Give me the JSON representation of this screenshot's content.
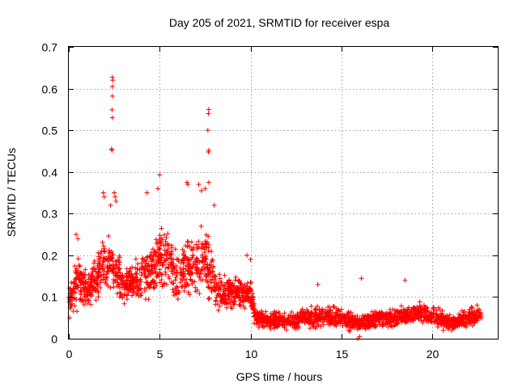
{
  "chart_data": {
    "type": "scatter",
    "title": "Day 205 of 2021, SRMTID for receiver espa",
    "xlabel": "GPS time / hours",
    "ylabel": "SRMTID / TECUs",
    "xlim": [
      0,
      23.6
    ],
    "ylim": [
      0,
      0.7
    ],
    "xticks": [
      0,
      5,
      10,
      15,
      20
    ],
    "yticks": [
      0,
      0.1,
      0.2,
      0.3,
      0.4,
      0.5,
      0.6,
      0.7
    ],
    "ytick_labels": [
      "0",
      "0.1",
      "0.2",
      "0.3",
      "0.4",
      "0.5",
      "0.6",
      "0.7"
    ],
    "grid": true,
    "marker": "+",
    "series": [
      {
        "name": "espa",
        "color": "#ff0000",
        "envelope": [
          {
            "t": 0.0,
            "lo": 0.04,
            "hi": 0.14
          },
          {
            "t": 0.5,
            "lo": 0.06,
            "hi": 0.22
          },
          {
            "t": 1.0,
            "lo": 0.06,
            "hi": 0.16
          },
          {
            "t": 1.5,
            "lo": 0.08,
            "hi": 0.22
          },
          {
            "t": 2.0,
            "lo": 0.1,
            "hi": 0.27
          },
          {
            "t": 2.5,
            "lo": 0.08,
            "hi": 0.27
          },
          {
            "t": 3.0,
            "lo": 0.07,
            "hi": 0.18
          },
          {
            "t": 3.5,
            "lo": 0.08,
            "hi": 0.2
          },
          {
            "t": 4.0,
            "lo": 0.08,
            "hi": 0.22
          },
          {
            "t": 4.5,
            "lo": 0.07,
            "hi": 0.24
          },
          {
            "t": 5.0,
            "lo": 0.1,
            "hi": 0.3
          },
          {
            "t": 5.5,
            "lo": 0.1,
            "hi": 0.27
          },
          {
            "t": 6.0,
            "lo": 0.06,
            "hi": 0.22
          },
          {
            "t": 6.5,
            "lo": 0.08,
            "hi": 0.28
          },
          {
            "t": 7.0,
            "lo": 0.08,
            "hi": 0.26
          },
          {
            "t": 7.5,
            "lo": 0.09,
            "hi": 0.3
          },
          {
            "t": 8.0,
            "lo": 0.06,
            "hi": 0.2
          },
          {
            "t": 8.5,
            "lo": 0.05,
            "hi": 0.16
          },
          {
            "t": 9.0,
            "lo": 0.06,
            "hi": 0.17
          },
          {
            "t": 9.5,
            "lo": 0.06,
            "hi": 0.16
          },
          {
            "t": 10.0,
            "lo": 0.06,
            "hi": 0.16
          },
          {
            "t": 10.3,
            "lo": 0.02,
            "hi": 0.08
          },
          {
            "t": 11.0,
            "lo": 0.02,
            "hi": 0.07
          },
          {
            "t": 12.0,
            "lo": 0.01,
            "hi": 0.07
          },
          {
            "t": 13.0,
            "lo": 0.02,
            "hi": 0.08
          },
          {
            "t": 14.0,
            "lo": 0.02,
            "hi": 0.09
          },
          {
            "t": 15.0,
            "lo": 0.02,
            "hi": 0.08
          },
          {
            "t": 16.0,
            "lo": 0.01,
            "hi": 0.06
          },
          {
            "t": 17.0,
            "lo": 0.02,
            "hi": 0.08
          },
          {
            "t": 18.0,
            "lo": 0.02,
            "hi": 0.08
          },
          {
            "t": 19.0,
            "lo": 0.03,
            "hi": 0.09
          },
          {
            "t": 20.0,
            "lo": 0.03,
            "hi": 0.09
          },
          {
            "t": 21.0,
            "lo": 0.01,
            "hi": 0.06
          },
          {
            "t": 22.0,
            "lo": 0.02,
            "hi": 0.08
          },
          {
            "t": 22.7,
            "lo": 0.03,
            "hi": 0.09
          }
        ],
        "outliers": [
          [
            2.4,
            0.627
          ],
          [
            2.42,
            0.62
          ],
          [
            2.4,
            0.605
          ],
          [
            2.4,
            0.582
          ],
          [
            2.38,
            0.549
          ],
          [
            2.4,
            0.53
          ],
          [
            2.35,
            0.455
          ],
          [
            2.38,
            0.452
          ],
          [
            7.7,
            0.55
          ],
          [
            7.68,
            0.54
          ],
          [
            7.65,
            0.5
          ],
          [
            7.7,
            0.452
          ],
          [
            7.68,
            0.448
          ],
          [
            5.0,
            0.393
          ],
          [
            4.9,
            0.36
          ],
          [
            6.5,
            0.375
          ],
          [
            6.55,
            0.37
          ],
          [
            7.15,
            0.37
          ],
          [
            7.7,
            0.375
          ],
          [
            7.3,
            0.355
          ],
          [
            7.5,
            0.36
          ],
          [
            1.9,
            0.35
          ],
          [
            2.5,
            0.35
          ],
          [
            4.3,
            0.35
          ],
          [
            1.95,
            0.34
          ],
          [
            2.55,
            0.34
          ],
          [
            2.6,
            0.33
          ],
          [
            8.0,
            0.32
          ],
          [
            2.3,
            0.32
          ],
          [
            0.4,
            0.25
          ],
          [
            0.5,
            0.24
          ],
          [
            9.8,
            0.2
          ],
          [
            10.0,
            0.19
          ],
          [
            13.7,
            0.13
          ],
          [
            16.1,
            0.145
          ],
          [
            18.5,
            0.14
          ],
          [
            15.9,
            0.0
          ],
          [
            16.0,
            0.005
          ],
          [
            0.05,
            0.05
          ],
          [
            20.6,
            0.02
          ],
          [
            21.2,
            0.03
          ],
          [
            16.05,
            0.03
          ]
        ]
      }
    ]
  }
}
